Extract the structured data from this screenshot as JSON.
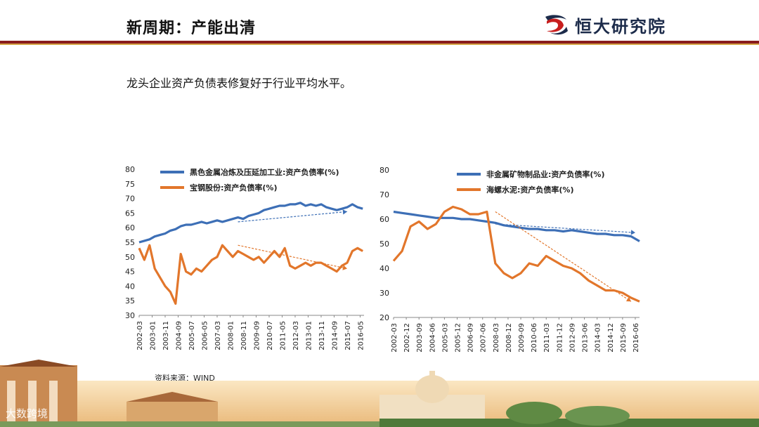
{
  "header": {
    "title": "新周期：产能出清",
    "brand": "恒大研究院"
  },
  "subtitle": "龙头企业资产负债表修复好于行业平均水平。",
  "source": "资料来源：WIND",
  "watermark": "大数跨境",
  "colors": {
    "blue": "#3d6fb6",
    "orange": "#e2762b",
    "maroon": "#8a1c1c",
    "gold": "#d6a94a"
  },
  "chart_data": [
    {
      "type": "line",
      "ylim": [
        30,
        80
      ],
      "yticks": [
        "30",
        "35",
        "40",
        "45",
        "50",
        "55",
        "60",
        "65",
        "70",
        "75",
        "80"
      ],
      "xticks": [
        "2002-03",
        "2003-01",
        "2003-11",
        "2004-09",
        "2005-07",
        "2006-05",
        "2007-03",
        "2008-01",
        "2008-11",
        "2009-09",
        "2010-07",
        "2011-05",
        "2012-03",
        "2013-01",
        "2013-11",
        "2014-09",
        "2015-07",
        "2016-05"
      ],
      "x": [
        "2002-03",
        "2002-07",
        "2002-11",
        "2003-03",
        "2003-07",
        "2003-11",
        "2004-03",
        "2004-07",
        "2004-11",
        "2005-03",
        "2005-07",
        "2005-11",
        "2006-03",
        "2006-07",
        "2006-11",
        "2007-03",
        "2007-07",
        "2007-11",
        "2008-03",
        "2008-07",
        "2008-11",
        "2009-03",
        "2009-07",
        "2009-11",
        "2010-03",
        "2010-07",
        "2010-11",
        "2011-03",
        "2011-07",
        "2011-11",
        "2012-03",
        "2012-07",
        "2012-11",
        "2013-03",
        "2013-07",
        "2013-11",
        "2014-03",
        "2014-07",
        "2014-11",
        "2015-03",
        "2015-07",
        "2015-11",
        "2016-03",
        "2016-07"
      ],
      "series": [
        {
          "name": "黑色金属冶炼及压延加工业:资产负债率(%)",
          "color": "#3d6fb6",
          "values": [
            55,
            55.5,
            56,
            57,
            57.5,
            58,
            59,
            59.5,
            60.5,
            61,
            61,
            61.5,
            62,
            61.5,
            62,
            62.5,
            62,
            62.5,
            63,
            63.5,
            63,
            64,
            64.5,
            65,
            66,
            66.5,
            67,
            67.5,
            67.5,
            68,
            68,
            68.5,
            67.5,
            68,
            67.5,
            68,
            67,
            66.5,
            66,
            66.5,
            67,
            68,
            67,
            66.5
          ]
        },
        {
          "name": "宝钢股份:资产负债率(%)",
          "color": "#e2762b",
          "values": [
            53,
            49,
            54,
            46,
            43,
            40,
            38,
            34,
            51,
            45,
            44,
            46,
            45,
            47,
            49,
            50,
            54,
            52,
            50,
            52,
            51,
            50,
            49,
            50,
            48,
            50,
            52,
            50,
            53,
            47,
            46,
            47,
            48,
            47,
            48,
            48,
            47,
            46,
            45,
            47,
            48,
            52,
            53,
            52
          ]
        }
      ],
      "trend_lines": [
        {
          "color": "#3d6fb6",
          "from": [
            "2008-07",
            62
          ],
          "to": [
            "2015-07",
            65.5
          ]
        },
        {
          "color": "#e2762b",
          "from": [
            "2008-07",
            54
          ],
          "to": [
            "2015-07",
            46
          ]
        }
      ]
    },
    {
      "type": "line",
      "ylim": [
        20,
        80
      ],
      "yticks": [
        "20",
        "30",
        "40",
        "50",
        "60",
        "70",
        "80"
      ],
      "xticks": [
        "2002-03",
        "2002-12",
        "2003-09",
        "2004-06",
        "2005-03",
        "2005-12",
        "2006-09",
        "2007-06",
        "2008-03",
        "2008-12",
        "2009-09",
        "2010-06",
        "2011-03",
        "2011-12",
        "2012-09",
        "2013-06",
        "2014-03",
        "2014-12",
        "2015-09",
        "2016-06"
      ],
      "x": [
        "2002-03",
        "2002-09",
        "2003-03",
        "2003-09",
        "2004-03",
        "2004-09",
        "2005-03",
        "2005-09",
        "2006-03",
        "2006-09",
        "2007-03",
        "2007-09",
        "2008-03",
        "2008-09",
        "2009-03",
        "2009-09",
        "2010-03",
        "2010-09",
        "2011-03",
        "2011-09",
        "2012-03",
        "2012-09",
        "2013-03",
        "2013-09",
        "2014-03",
        "2014-09",
        "2015-03",
        "2015-09",
        "2016-03",
        "2016-09"
      ],
      "series": [
        {
          "name": "非金属矿物制品业:资产负债率(%)",
          "color": "#3d6fb6",
          "values": [
            63,
            62.5,
            62,
            61.5,
            61,
            60.5,
            60.5,
            60.5,
            60,
            60,
            59.5,
            59,
            58.5,
            57.5,
            57,
            56.5,
            56,
            56,
            55.5,
            55.5,
            55,
            55.5,
            55,
            54.5,
            54,
            54,
            53.5,
            53.5,
            53,
            51
          ]
        },
        {
          "name": "海螺水泥:资产负债率(%)",
          "color": "#e2762b",
          "values": [
            43,
            47,
            57,
            59,
            56,
            58,
            63,
            65,
            64,
            62,
            62,
            63,
            42,
            38,
            36,
            38,
            42,
            41,
            45,
            43,
            41,
            40,
            38,
            35,
            33,
            31,
            31,
            30,
            28,
            26.5
          ]
        }
      ],
      "trend_lines": [
        {
          "color": "#3d6fb6",
          "from": [
            "2008-03",
            58
          ],
          "to": [
            "2016-06",
            54.5
          ]
        },
        {
          "color": "#e2762b",
          "from": [
            "2008-03",
            63
          ],
          "to": [
            "2016-03",
            26.5
          ]
        }
      ]
    }
  ]
}
